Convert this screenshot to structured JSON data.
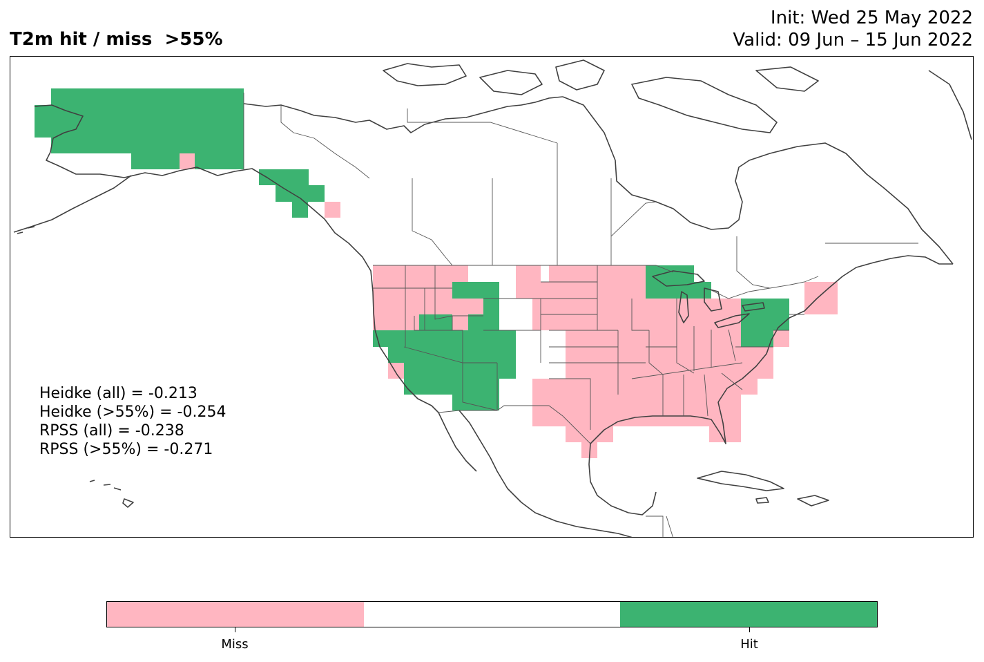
{
  "title": "T2m hit / miss  >55%",
  "init_label": "Init: Wed 25 May 2022",
  "valid_label": "Valid: 09 Jun – 15 Jun 2022",
  "scores": {
    "heidke_all": "Heidke (all) = -0.213",
    "heidke_55": "Heidke (>55%) = -0.254",
    "rpss_all": "RPSS (all) = -0.238",
    "rpss_55": "RPSS (>55%) = -0.271"
  },
  "colors": {
    "miss": "#ffb6c1",
    "neutral": "#ffffff",
    "hit": "#3cb371",
    "coast": "#404040",
    "border": "#555555"
  },
  "colorbar": {
    "segments": [
      "Miss",
      "",
      "Hit"
    ],
    "tick_labels": [
      "Miss",
      "Hit"
    ]
  }
}
